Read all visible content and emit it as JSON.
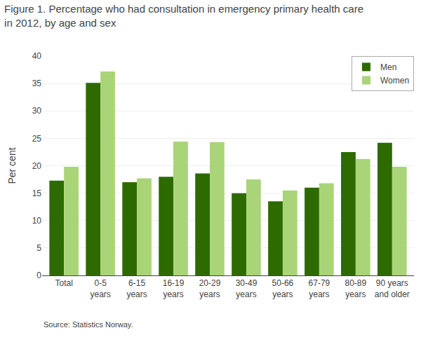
{
  "chart_data": {
    "type": "bar",
    "title": "Figure 1. Percentage who had consultation in emergency primary health care\nin 2012, by age and sex",
    "ylabel": "Per cent",
    "source": "Source: Statistics Norway.",
    "categories": [
      "Total",
      "0-5\nyears",
      "6-15\nyears",
      "16-19\nyears",
      "20-29\nyears",
      "30-49\nyears",
      "50-66\nyears",
      "67-79\nyears",
      "80-89\nyears",
      "90 years\nand older"
    ],
    "series": [
      {
        "name": "Men",
        "color": "#2d6a00",
        "values": [
          17.3,
          35.1,
          17.0,
          18.0,
          18.6,
          15.0,
          13.5,
          16.0,
          22.5,
          24.2
        ]
      },
      {
        "name": "Women",
        "color": "#aad478",
        "values": [
          19.8,
          37.2,
          17.7,
          24.4,
          24.3,
          17.5,
          15.5,
          16.8,
          21.2,
          19.8
        ]
      }
    ],
    "ylim": [
      0,
      40
    ],
    "yticks": [
      0,
      5,
      10,
      15,
      20,
      25,
      30,
      35,
      40
    ],
    "grid": true,
    "legend": "upper right"
  }
}
